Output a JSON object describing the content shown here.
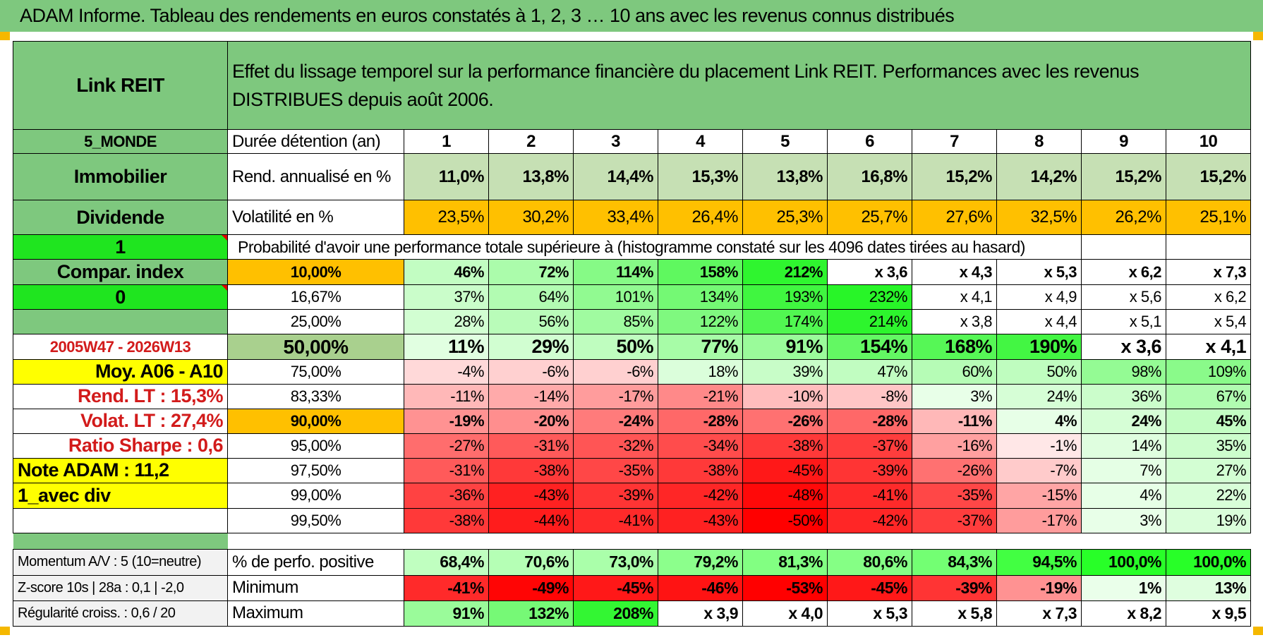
{
  "title": "ADAM Informe. Tableau des rendements en euros constatés à 1, 2, 3 … 10 ans avec les revenus connus distribués",
  "colors": {
    "header_green": "#7ec87e",
    "bright_green": "#1fe51f",
    "yellow": "#ffff00",
    "orange": "#ffc000",
    "light_green": "#c6e0b4",
    "red_text": "#d21b1b"
  },
  "header": {
    "asset": "Link REIT",
    "description": "Effet du lissage temporel sur la performance financière du placement Link REIT. Performances avec les revenus DISTRIBUES depuis août 2006."
  },
  "sidebar": [
    "5_MONDE",
    "Immobilier",
    "Dividende",
    "1",
    "Compar. index",
    "0",
    "",
    "2005W47 - 2026W13",
    "Moy. A06 - A10",
    "Rend. LT :    15,3%",
    "Volat. LT :    27,4%",
    "Ratio Sharpe :    0,6",
    "Note ADAM : 11,2",
    "1_avec div",
    ""
  ],
  "years_label": "Durée détention (an)",
  "years": [
    "1",
    "2",
    "3",
    "4",
    "5",
    "6",
    "7",
    "8",
    "9",
    "10"
  ],
  "rend_label": "Rend. annualisé en %",
  "rend": [
    "11,0%",
    "13,8%",
    "14,4%",
    "15,3%",
    "13,8%",
    "16,8%",
    "15,2%",
    "14,2%",
    "15,2%",
    "15,2%"
  ],
  "vol_label": "Volatilité en %",
  "vol": [
    "23,5%",
    "30,2%",
    "33,4%",
    "26,4%",
    "25,3%",
    "25,7%",
    "27,6%",
    "32,5%",
    "26,2%",
    "25,1%"
  ],
  "prob_title": "Probabilité d'avoir une performance totale supérieure à (histogramme constaté sur les 4096 dates tirées au hasard)",
  "probabilities": [
    {
      "label": "10,00%",
      "values": [
        "46%",
        "72%",
        "114%",
        "158%",
        "212%",
        "x 3,6",
        "x 4,3",
        "x 5,3",
        "x 6,2",
        "x 7,3"
      ]
    },
    {
      "label": "16,67%",
      "values": [
        "37%",
        "64%",
        "101%",
        "134%",
        "193%",
        "232%",
        "x 4,1",
        "x 4,9",
        "x 5,6",
        "x 6,2"
      ]
    },
    {
      "label": "25,00%",
      "values": [
        "28%",
        "56%",
        "85%",
        "122%",
        "174%",
        "214%",
        "x 3,8",
        "x 4,4",
        "x 5,1",
        "x 5,4"
      ]
    },
    {
      "label": "50,00%",
      "values": [
        "11%",
        "29%",
        "50%",
        "77%",
        "91%",
        "154%",
        "168%",
        "190%",
        "x 3,6",
        "x 4,1"
      ]
    },
    {
      "label": "75,00%",
      "values": [
        "-4%",
        "-6%",
        "-6%",
        "18%",
        "39%",
        "47%",
        "60%",
        "50%",
        "98%",
        "109%"
      ]
    },
    {
      "label": "83,33%",
      "values": [
        "-11%",
        "-14%",
        "-17%",
        "-21%",
        "-10%",
        "-8%",
        "3%",
        "24%",
        "36%",
        "67%"
      ]
    },
    {
      "label": "90,00%",
      "values": [
        "-19%",
        "-20%",
        "-24%",
        "-28%",
        "-26%",
        "-28%",
        "-11%",
        "4%",
        "24%",
        "45%"
      ]
    },
    {
      "label": "95,00%",
      "values": [
        "-27%",
        "-31%",
        "-32%",
        "-34%",
        "-38%",
        "-37%",
        "-16%",
        "-1%",
        "14%",
        "35%"
      ]
    },
    {
      "label": "97,50%",
      "values": [
        "-31%",
        "-38%",
        "-35%",
        "-38%",
        "-45%",
        "-39%",
        "-26%",
        "-7%",
        "7%",
        "27%"
      ]
    },
    {
      "label": "99,00%",
      "values": [
        "-36%",
        "-43%",
        "-39%",
        "-42%",
        "-48%",
        "-41%",
        "-35%",
        "-15%",
        "4%",
        "22%"
      ]
    },
    {
      "label": "99,50%",
      "values": [
        "-38%",
        "-44%",
        "-41%",
        "-43%",
        "-50%",
        "-42%",
        "-37%",
        "-17%",
        "3%",
        "19%"
      ]
    }
  ],
  "stats": [
    {
      "side": "Momentum A/V : 5 (10=neutre)",
      "label": "% de perfo. positive",
      "values": [
        "68,4%",
        "70,6%",
        "73,0%",
        "79,2%",
        "81,3%",
        "80,6%",
        "84,3%",
        "94,5%",
        "100,0%",
        "100,0%"
      ]
    },
    {
      "side": "Z-score 10s | 28a : 0,1 | -2,0",
      "label": "Minimum",
      "values": [
        "-41%",
        "-49%",
        "-45%",
        "-46%",
        "-53%",
        "-45%",
        "-39%",
        "-19%",
        "1%",
        "13%"
      ]
    },
    {
      "side": "Régularité croiss. : 0,6 / 20",
      "label": "Maximum",
      "values": [
        "91%",
        "132%",
        "208%",
        "x 3,9",
        "x 4,0",
        "x 5,3",
        "x 5,8",
        "x 7,3",
        "x 8,2",
        "x 9,5"
      ]
    }
  ]
}
